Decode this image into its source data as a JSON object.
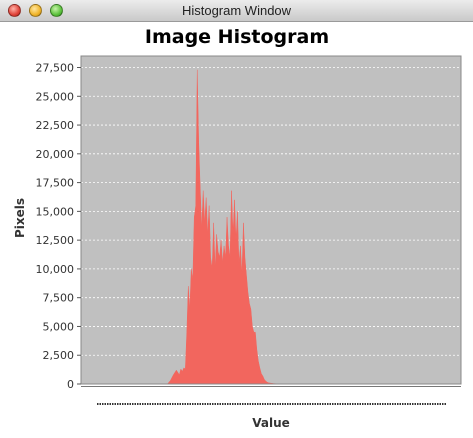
{
  "window": {
    "title": "Histogram Window"
  },
  "colors": {
    "plot_background": "#c0c0c0",
    "fill": "#f2665e",
    "gridline": "#ffffff"
  },
  "chart_data": {
    "type": "area",
    "title": "Image Histogram",
    "xlabel": "Value",
    "ylabel": "Pixels",
    "ylim": [
      0,
      28500
    ],
    "yticks": [
      0,
      2500,
      5000,
      7500,
      10000,
      12500,
      15000,
      17500,
      20000,
      22500,
      25000,
      27500
    ],
    "ytick_labels": [
      "0",
      "2,500",
      "5,000",
      "7,500",
      "10,000",
      "12,500",
      "15,000",
      "17,500",
      "20,000",
      "22,500",
      "25,000",
      "27,500"
    ],
    "xlim": [
      0,
      255
    ],
    "grid": true,
    "legend": false,
    "series": [
      {
        "x": [
          0,
          58,
          60,
          62,
          64,
          66,
          67,
          68,
          69,
          70,
          71,
          72,
          73,
          74,
          75,
          76,
          77,
          78,
          79,
          80,
          81,
          82,
          83,
          84,
          85,
          86,
          87,
          88,
          89,
          90,
          91,
          92,
          93,
          94,
          95,
          96,
          97,
          98,
          99,
          100,
          101,
          102,
          103,
          104,
          105,
          106,
          107,
          108,
          109,
          110,
          111,
          112,
          113,
          114,
          115,
          116,
          117,
          118,
          119,
          120,
          121,
          122,
          123,
          124,
          125,
          126,
          127,
          128,
          129,
          130,
          131,
          132,
          133,
          134,
          135,
          136,
          137,
          138,
          140,
          145,
          255
        ],
        "y": [
          0,
          0,
          300,
          800,
          1200,
          800,
          1300,
          1100,
          1400,
          1300,
          4500,
          8500,
          6500,
          10000,
          9000,
          14500,
          15500,
          27300,
          21000,
          17000,
          13500,
          16800,
          14000,
          16200,
          13000,
          15500,
          11000,
          10000,
          14000,
          10000,
          13000,
          11500,
          11000,
          12500,
          10500,
          12000,
          11000,
          14500,
          12000,
          11000,
          16800,
          13000,
          16000,
          12500,
          15000,
          10500,
          12000,
          9500,
          14000,
          11000,
          9500,
          8000,
          7000,
          6500,
          5000,
          4500,
          4500,
          3000,
          2000,
          1400,
          900,
          700,
          400,
          250,
          150,
          100,
          80,
          60,
          40,
          30,
          20,
          10,
          0,
          0,
          0,
          0,
          0,
          0,
          0,
          0,
          0
        ]
      }
    ]
  }
}
